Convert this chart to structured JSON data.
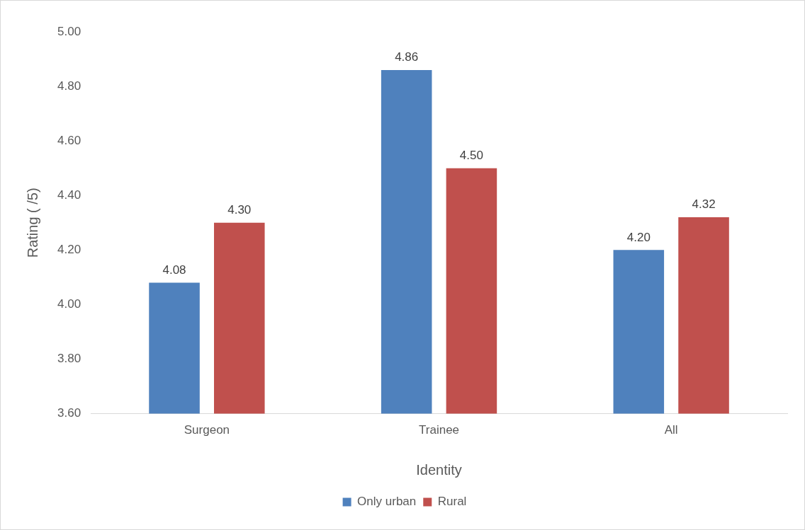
{
  "chart_data": {
    "type": "bar",
    "xlabel": "Identity",
    "ylabel": "Rating ( /5)",
    "categories": [
      "Surgeon",
      "Trainee",
      "All"
    ],
    "series": [
      {
        "name": "Only urban",
        "color": "#4f81bd",
        "values": [
          4.08,
          4.86,
          4.2
        ],
        "value_labels": [
          "4.08",
          "4.86",
          "4.20"
        ]
      },
      {
        "name": "Rural",
        "color": "#c0504d",
        "values": [
          4.3,
          4.5,
          4.32
        ],
        "value_labels": [
          "4.30",
          "4.50",
          "4.32"
        ]
      }
    ],
    "ylim": [
      3.6,
      5.0
    ],
    "yticks": [
      {
        "value": 3.6,
        "label": "3.60"
      },
      {
        "value": 3.8,
        "label": "3.80"
      },
      {
        "value": 4.0,
        "label": "4.00"
      },
      {
        "value": 4.2,
        "label": "4.20"
      },
      {
        "value": 4.4,
        "label": "4.40"
      },
      {
        "value": 4.6,
        "label": "4.60"
      },
      {
        "value": 4.8,
        "label": "4.80"
      },
      {
        "value": 5.0,
        "label": "5.00"
      }
    ],
    "grid": false,
    "legend": "bottom"
  }
}
